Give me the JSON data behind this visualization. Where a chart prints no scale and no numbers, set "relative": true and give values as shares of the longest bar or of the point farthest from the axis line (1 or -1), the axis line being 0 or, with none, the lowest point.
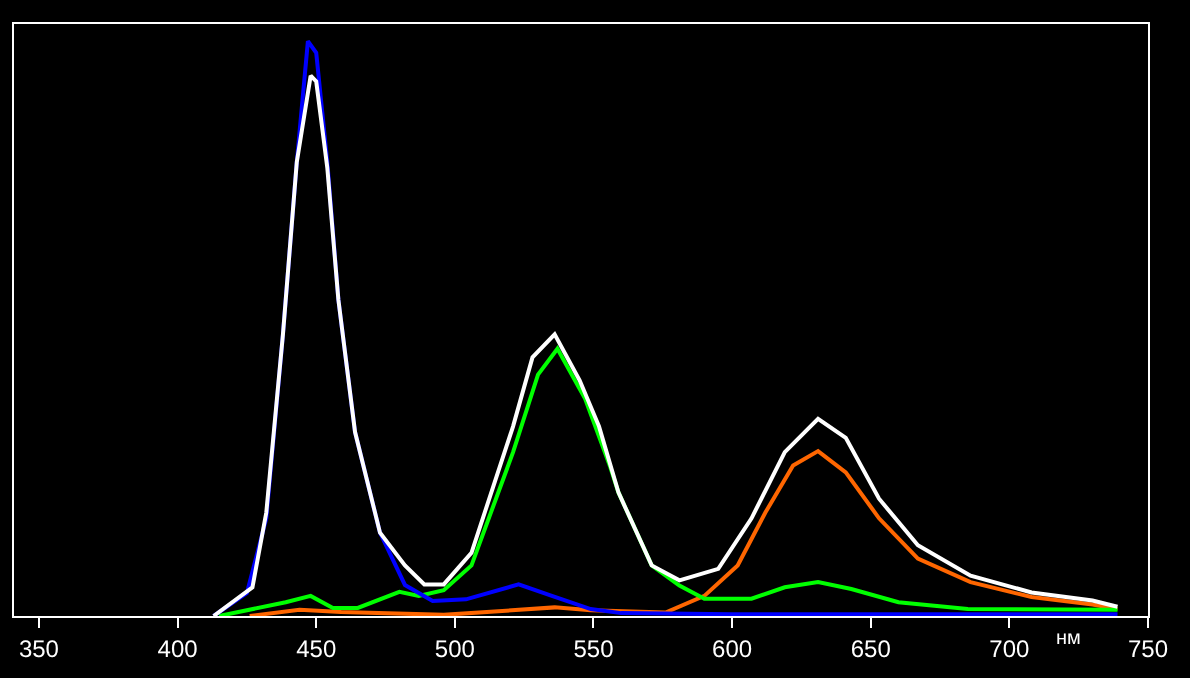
{
  "chart_data": {
    "type": "line",
    "relative": true,
    "xlabel": "нм",
    "xlim": [
      341,
      750
    ],
    "xticks": [
      350,
      400,
      450,
      500,
      550,
      600,
      650,
      700,
      750
    ],
    "grid": false,
    "marker": "none",
    "line_style": "solid",
    "series": [
      {
        "color": "#ff6600",
        "x": [
          426,
          444,
          459,
          496,
          536,
          549,
          576,
          590,
          602,
          612,
          622,
          631,
          641,
          653,
          667,
          686,
          708,
          730,
          739
        ],
        "values": [
          0,
          0.011,
          0.007,
          0.002,
          0.015,
          0.01,
          0.006,
          0.035,
          0.088,
          0.18,
          0.262,
          0.287,
          0.25,
          0.17,
          0.1,
          0.059,
          0.033,
          0.02,
          0.012
        ]
      },
      {
        "color": "#00ff00",
        "x": [
          415,
          439,
          448,
          456,
          465,
          480,
          487,
          496,
          506,
          521,
          530,
          537,
          547,
          556,
          559,
          571,
          581,
          590,
          607,
          619,
          631,
          643,
          660,
          685,
          739
        ],
        "values": [
          0,
          0.024,
          0.035,
          0.014,
          0.014,
          0.042,
          0.035,
          0.045,
          0.088,
          0.285,
          0.42,
          0.465,
          0.378,
          0.26,
          0.215,
          0.088,
          0.053,
          0.03,
          0.03,
          0.05,
          0.059,
          0.047,
          0.024,
          0.012,
          0.011
        ]
      },
      {
        "color": "#0000ff",
        "x": [
          413,
          425,
          432,
          438,
          443,
          447,
          450,
          454,
          458,
          464,
          473,
          482,
          492,
          504,
          523,
          535,
          549,
          560,
          600,
          650,
          700,
          739
        ],
        "values": [
          0,
          0.04,
          0.17,
          0.49,
          0.79,
          1.0,
          0.98,
          0.79,
          0.55,
          0.32,
          0.145,
          0.054,
          0.026,
          0.029,
          0.055,
          0.035,
          0.012,
          0.005,
          0.003,
          0.003,
          0.003,
          0.003
        ]
      },
      {
        "color": "#ffffff",
        "x": [
          413,
          427,
          432,
          438,
          443,
          448,
          450,
          454,
          458,
          464,
          473,
          482,
          489,
          496,
          506,
          521,
          528,
          536,
          545,
          552,
          559,
          571,
          581,
          595,
          607,
          619,
          631,
          641,
          653,
          667,
          686,
          708,
          730,
          739
        ],
        "values": [
          0,
          0.05,
          0.18,
          0.49,
          0.79,
          0.94,
          0.93,
          0.78,
          0.55,
          0.32,
          0.145,
          0.088,
          0.055,
          0.055,
          0.11,
          0.33,
          0.45,
          0.49,
          0.41,
          0.33,
          0.215,
          0.088,
          0.062,
          0.082,
          0.17,
          0.285,
          0.343,
          0.31,
          0.204,
          0.123,
          0.07,
          0.041,
          0.027,
          0.016
        ]
      }
    ]
  }
}
